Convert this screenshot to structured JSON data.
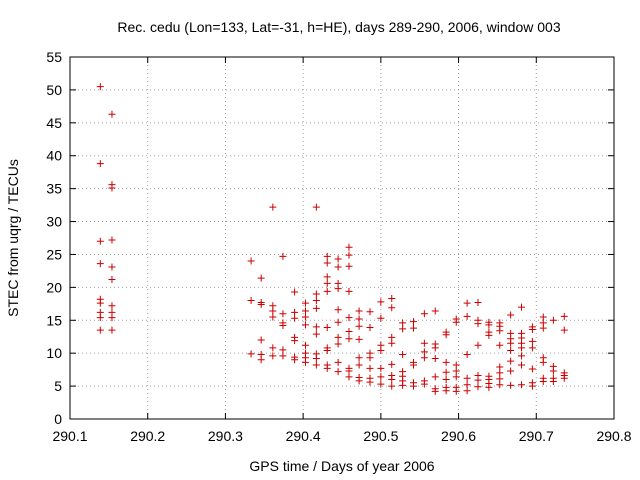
{
  "chart_data": {
    "type": "scatter",
    "title": "Rec. cedu (Lon=133, Lat=-31, h=HE), days 289-290, 2006, window 003",
    "xlabel": "GPS time / Days of year 2006",
    "ylabel": "STEC from uqrg / TECUs",
    "xlim": [
      290.1,
      290.8
    ],
    "ylim": [
      0,
      55
    ],
    "x_ticks": [
      290.1,
      290.2,
      290.3,
      290.4,
      290.5,
      290.6,
      290.7,
      290.8
    ],
    "x_tick_labels": [
      "290.1",
      "290.2",
      "290.3",
      "290.4",
      "290.5",
      "290.6",
      "290.7",
      "290.8"
    ],
    "y_ticks": [
      0,
      5,
      10,
      15,
      20,
      25,
      30,
      35,
      40,
      45,
      50,
      55
    ],
    "y_tick_labels": [
      "0",
      "5",
      "10",
      "15",
      "20",
      "25",
      "30",
      "35",
      "40",
      "45",
      "50",
      "55"
    ],
    "grid": true,
    "marker": "+",
    "marker_color": "#cc0000",
    "series": [
      {
        "name": "STEC",
        "points": [
          [
            290.139,
            50.5
          ],
          [
            290.139,
            38.8
          ],
          [
            290.139,
            27.0
          ],
          [
            290.139,
            23.6
          ],
          [
            290.139,
            18.2
          ],
          [
            290.139,
            17.6
          ],
          [
            290.139,
            16.2
          ],
          [
            290.139,
            15.4
          ],
          [
            290.139,
            13.5
          ],
          [
            290.154,
            46.3
          ],
          [
            290.154,
            35.6
          ],
          [
            290.154,
            35.1
          ],
          [
            290.154,
            27.2
          ],
          [
            290.154,
            23.1
          ],
          [
            290.154,
            21.2
          ],
          [
            290.154,
            17.2
          ],
          [
            290.154,
            16.2
          ],
          [
            290.154,
            15.4
          ],
          [
            290.154,
            13.5
          ],
          [
            290.333,
            24.0
          ],
          [
            290.333,
            18.0
          ],
          [
            290.333,
            9.9
          ],
          [
            290.346,
            21.4
          ],
          [
            290.346,
            17.7
          ],
          [
            290.346,
            17.4
          ],
          [
            290.346,
            12.0
          ],
          [
            290.346,
            9.8
          ],
          [
            290.346,
            9.0
          ],
          [
            290.361,
            32.2
          ],
          [
            290.361,
            17.2
          ],
          [
            290.361,
            16.4
          ],
          [
            290.361,
            15.5
          ],
          [
            290.361,
            10.8
          ],
          [
            290.361,
            9.6
          ],
          [
            290.374,
            24.7
          ],
          [
            290.374,
            16.0
          ],
          [
            290.374,
            14.6
          ],
          [
            290.374,
            14.2
          ],
          [
            290.374,
            10.5
          ],
          [
            290.374,
            9.6
          ],
          [
            290.389,
            19.3
          ],
          [
            290.389,
            16.2
          ],
          [
            290.389,
            15.3
          ],
          [
            290.389,
            12.4
          ],
          [
            290.389,
            11.9
          ],
          [
            290.389,
            9.4
          ],
          [
            290.389,
            9.0
          ],
          [
            290.403,
            17.6
          ],
          [
            290.403,
            16.4
          ],
          [
            290.403,
            15.5
          ],
          [
            290.403,
            14.3
          ],
          [
            290.403,
            11.2
          ],
          [
            290.403,
            10.0
          ],
          [
            290.403,
            9.3
          ],
          [
            290.403,
            8.6
          ],
          [
            290.417,
            32.2
          ],
          [
            290.417,
            19.0
          ],
          [
            290.417,
            18.0
          ],
          [
            290.417,
            16.8
          ],
          [
            290.417,
            14.0
          ],
          [
            290.417,
            12.9
          ],
          [
            290.417,
            9.9
          ],
          [
            290.417,
            9.2
          ],
          [
            290.417,
            8.2
          ],
          [
            290.431,
            24.7
          ],
          [
            290.431,
            23.7
          ],
          [
            290.431,
            21.6
          ],
          [
            290.431,
            20.6
          ],
          [
            290.431,
            19.4
          ],
          [
            290.431,
            13.9
          ],
          [
            290.431,
            10.8
          ],
          [
            290.431,
            10.4
          ],
          [
            290.431,
            8.2
          ],
          [
            290.431,
            7.7
          ],
          [
            290.445,
            24.3
          ],
          [
            290.445,
            23.1
          ],
          [
            290.445,
            20.6
          ],
          [
            290.445,
            19.8
          ],
          [
            290.445,
            16.6
          ],
          [
            290.445,
            14.7
          ],
          [
            290.445,
            12.4
          ],
          [
            290.445,
            11.4
          ],
          [
            290.445,
            8.6
          ],
          [
            290.445,
            7.2
          ],
          [
            290.459,
            26.1
          ],
          [
            290.459,
            24.9
          ],
          [
            290.459,
            23.2
          ],
          [
            290.459,
            19.4
          ],
          [
            290.459,
            15.4
          ],
          [
            290.459,
            13.3
          ],
          [
            290.459,
            12.2
          ],
          [
            290.459,
            7.7
          ],
          [
            290.459,
            7.3
          ],
          [
            290.459,
            6.4
          ],
          [
            290.472,
            16.4
          ],
          [
            290.472,
            15.2
          ],
          [
            290.472,
            14.1
          ],
          [
            290.472,
            12.1
          ],
          [
            290.472,
            9.3
          ],
          [
            290.472,
            8.2
          ],
          [
            290.472,
            6.3
          ],
          [
            290.472,
            5.8
          ],
          [
            290.486,
            16.3
          ],
          [
            290.486,
            13.9
          ],
          [
            290.486,
            10.0
          ],
          [
            290.486,
            9.3
          ],
          [
            290.486,
            7.7
          ],
          [
            290.486,
            6.2
          ],
          [
            290.486,
            5.6
          ],
          [
            290.5,
            17.8
          ],
          [
            290.5,
            15.3
          ],
          [
            290.5,
            11.2
          ],
          [
            290.5,
            10.4
          ],
          [
            290.5,
            7.7
          ],
          [
            290.5,
            6.4
          ],
          [
            290.5,
            5.3
          ],
          [
            290.514,
            18.3
          ],
          [
            290.514,
            16.9
          ],
          [
            290.514,
            12.4
          ],
          [
            290.514,
            11.5
          ],
          [
            290.514,
            8.3
          ],
          [
            290.514,
            6.6
          ],
          [
            290.514,
            6.0
          ],
          [
            290.514,
            5.0
          ],
          [
            290.528,
            14.6
          ],
          [
            290.528,
            13.7
          ],
          [
            290.528,
            9.8
          ],
          [
            290.528,
            7.2
          ],
          [
            290.528,
            6.5
          ],
          [
            290.528,
            5.8
          ],
          [
            290.528,
            5.1
          ],
          [
            290.542,
            14.8
          ],
          [
            290.542,
            13.8
          ],
          [
            290.542,
            8.6
          ],
          [
            290.542,
            8.2
          ],
          [
            290.542,
            5.5
          ],
          [
            290.542,
            5.0
          ],
          [
            290.556,
            16.0
          ],
          [
            290.556,
            11.5
          ],
          [
            290.556,
            10.2
          ],
          [
            290.556,
            9.3
          ],
          [
            290.556,
            5.8
          ],
          [
            290.556,
            5.3
          ],
          [
            290.57,
            16.4
          ],
          [
            290.57,
            11.4
          ],
          [
            290.57,
            10.8
          ],
          [
            290.57,
            9.2
          ],
          [
            290.57,
            6.4
          ],
          [
            290.57,
            4.6
          ],
          [
            290.57,
            4.2
          ],
          [
            290.584,
            13.2
          ],
          [
            290.584,
            12.8
          ],
          [
            290.584,
            8.6
          ],
          [
            290.584,
            7.1
          ],
          [
            290.584,
            6.0
          ],
          [
            290.584,
            4.8
          ],
          [
            290.584,
            4.3
          ],
          [
            290.597,
            15.2
          ],
          [
            290.597,
            14.7
          ],
          [
            290.597,
            8.2
          ],
          [
            290.597,
            7.3
          ],
          [
            290.597,
            6.4
          ],
          [
            290.597,
            4.8
          ],
          [
            290.597,
            4.2
          ],
          [
            290.611,
            17.6
          ],
          [
            290.611,
            15.6
          ],
          [
            290.611,
            9.8
          ],
          [
            290.611,
            6.2
          ],
          [
            290.611,
            5.2
          ],
          [
            290.611,
            4.3
          ],
          [
            290.625,
            17.7
          ],
          [
            290.625,
            15.0
          ],
          [
            290.625,
            14.5
          ],
          [
            290.625,
            11.2
          ],
          [
            290.625,
            6.6
          ],
          [
            290.625,
            5.9
          ],
          [
            290.625,
            4.9
          ],
          [
            290.639,
            14.7
          ],
          [
            290.639,
            14.3
          ],
          [
            290.639,
            13.2
          ],
          [
            290.639,
            12.7
          ],
          [
            290.639,
            6.5
          ],
          [
            290.639,
            6.0
          ],
          [
            290.639,
            5.4
          ],
          [
            290.639,
            4.8
          ],
          [
            290.653,
            14.6
          ],
          [
            290.653,
            14.1
          ],
          [
            290.653,
            13.4
          ],
          [
            290.653,
            11.2
          ],
          [
            290.653,
            7.9
          ],
          [
            290.653,
            7.0
          ],
          [
            290.653,
            6.1
          ],
          [
            290.653,
            5.2
          ],
          [
            290.667,
            15.8
          ],
          [
            290.667,
            13.0
          ],
          [
            290.667,
            12.2
          ],
          [
            290.667,
            11.5
          ],
          [
            290.667,
            10.4
          ],
          [
            290.667,
            8.8
          ],
          [
            290.667,
            7.3
          ],
          [
            290.667,
            5.1
          ],
          [
            290.681,
            17.0
          ],
          [
            290.681,
            13.0
          ],
          [
            290.681,
            12.3
          ],
          [
            290.681,
            11.5
          ],
          [
            290.681,
            10.8
          ],
          [
            290.681,
            9.6
          ],
          [
            290.681,
            8.2
          ],
          [
            290.681,
            5.2
          ],
          [
            290.695,
            14.0
          ],
          [
            290.695,
            13.6
          ],
          [
            290.695,
            11.8
          ],
          [
            290.695,
            10.8
          ],
          [
            290.695,
            7.6
          ],
          [
            290.695,
            5.5
          ],
          [
            290.695,
            5.0
          ],
          [
            290.709,
            15.5
          ],
          [
            290.709,
            14.6
          ],
          [
            290.709,
            13.8
          ],
          [
            290.709,
            9.3
          ],
          [
            290.709,
            8.6
          ],
          [
            290.709,
            6.2
          ],
          [
            290.709,
            5.7
          ],
          [
            290.722,
            15.0
          ],
          [
            290.722,
            8.0
          ],
          [
            290.722,
            7.3
          ],
          [
            290.722,
            6.2
          ],
          [
            290.722,
            5.7
          ],
          [
            290.736,
            15.6
          ],
          [
            290.736,
            13.5
          ],
          [
            290.736,
            7.0
          ],
          [
            290.736,
            6.6
          ],
          [
            290.736,
            6.2
          ]
        ]
      }
    ]
  }
}
